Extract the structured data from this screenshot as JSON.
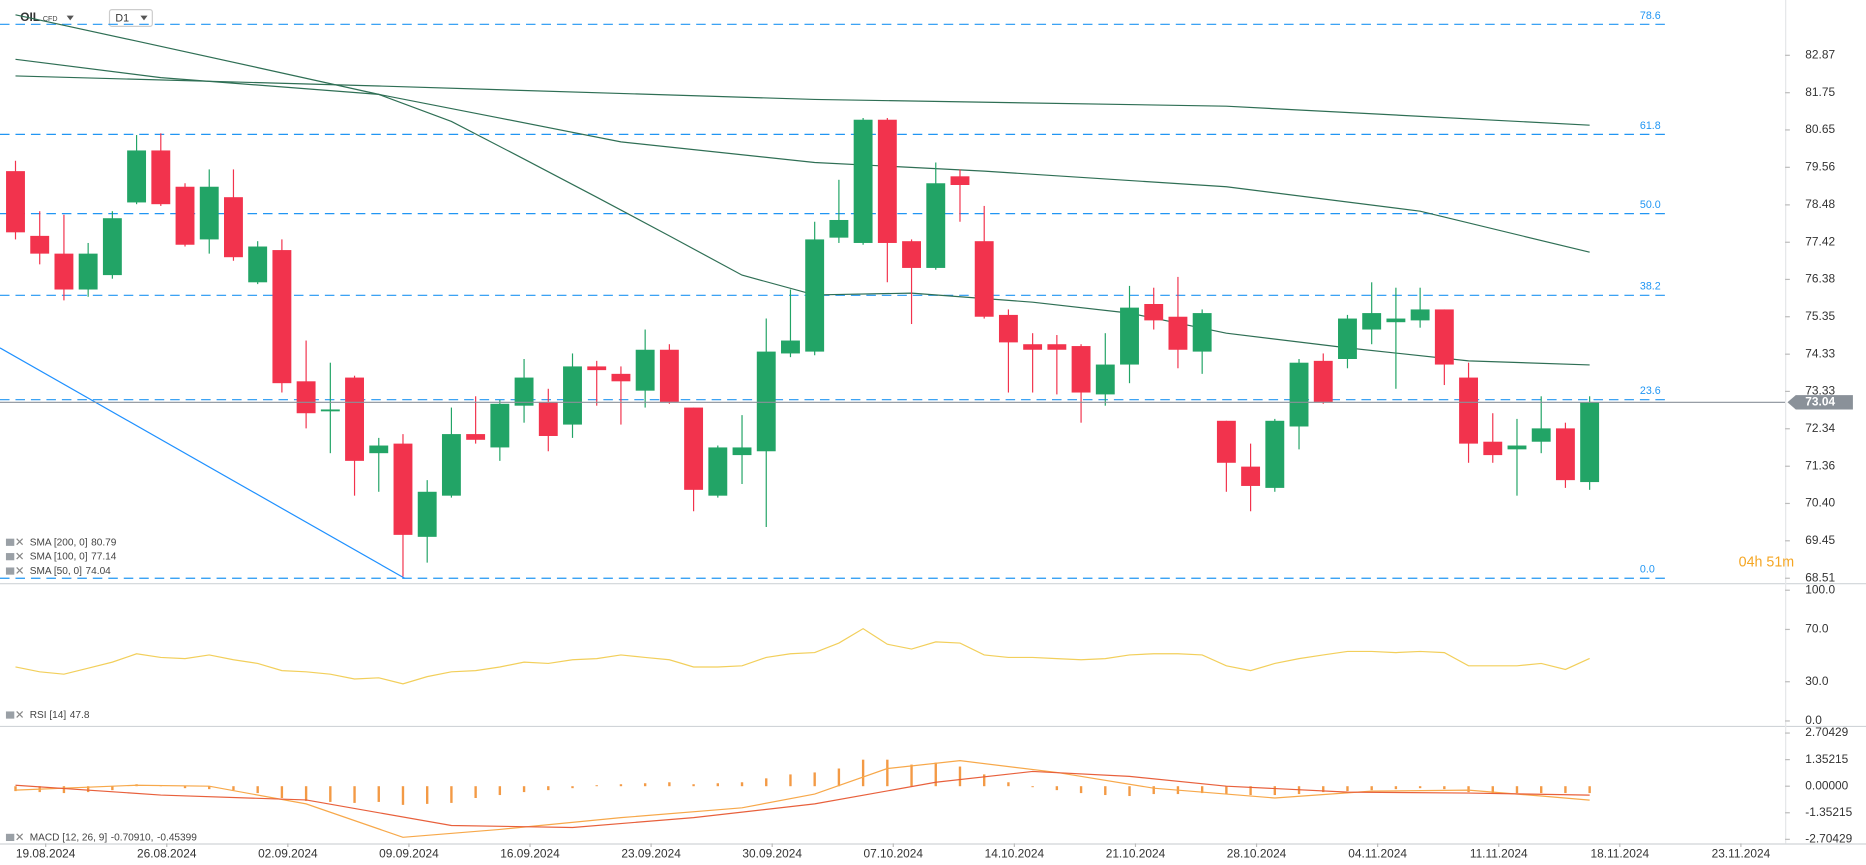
{
  "header": {
    "symbol": "OIL",
    "symbol_type": "CFD",
    "timeframe": "D1"
  },
  "countdown": "04h 51m",
  "chart_data": [
    {
      "type": "candlestick",
      "up_color": "#22a466",
      "down_color": "#f2334d",
      "log_scale": true,
      "xlim": [
        -0.64,
        73.07
      ],
      "ylim": [
        68.39,
        84.26
      ],
      "yticks": [
        82.87,
        81.75,
        80.65,
        79.56,
        78.48,
        77.42,
        76.38,
        75.35,
        74.33,
        73.33,
        72.34,
        71.36,
        {
          "value": 70.4,
          "label": "70.40"
        },
        69.45,
        68.51
      ],
      "xticks": [
        {
          "value": 1,
          "label": "19.08.2024"
        },
        {
          "value": 6,
          "label": "26.08.2024"
        },
        {
          "value": 11,
          "label": "02.09.2024"
        },
        {
          "value": 16,
          "label": "09.09.2024"
        },
        {
          "value": 21,
          "label": "16.09.2024"
        },
        {
          "value": 26,
          "label": "23.09.2024"
        },
        {
          "value": 31,
          "label": "30.09.2024"
        },
        {
          "value": 36,
          "label": "07.10.2024"
        },
        {
          "value": 41,
          "label": "14.10.2024"
        },
        {
          "value": 46,
          "label": "21.10.2024"
        },
        {
          "value": 51,
          "label": "28.10.2024"
        },
        {
          "value": 56,
          "label": "04.11.2024"
        },
        {
          "value": 61,
          "label": "11.11.2024"
        },
        {
          "value": 66,
          "label": "18.11.2024"
        },
        {
          "value": 71,
          "label": "23.11.2024"
        }
      ],
      "open": [
        79.45,
        77.6,
        77.1,
        76.1,
        76.5,
        78.55,
        80.05,
        79.0,
        77.5,
        78.7,
        76.3,
        77.2,
        73.6,
        72.8,
        73.7,
        71.7,
        71.95,
        69.55,
        70.6,
        72.2,
        71.85,
        72.95,
        73.05,
        72.45,
        74.0,
        73.8,
        73.35,
        74.45,
        72.9,
        70.6,
        71.65,
        71.75,
        74.35,
        74.4,
        77.55,
        77.4,
        80.95,
        77.45,
        76.7,
        79.3,
        77.45,
        75.4,
        74.6,
        74.6,
        74.55,
        73.25,
        74.05,
        75.7,
        75.35,
        74.4,
        72.55,
        71.35,
        70.8,
        72.4,
        74.15,
        74.2,
        75.0,
        75.2,
        75.25,
        75.55,
        73.7,
        72.0,
        71.8,
        72.0,
        72.35,
        70.95
      ],
      "high": [
        79.75,
        78.3,
        78.2,
        77.4,
        78.3,
        80.5,
        80.55,
        79.1,
        79.5,
        79.5,
        77.45,
        77.5,
        74.7,
        74.1,
        73.75,
        72.1,
        72.2,
        71.0,
        72.9,
        73.2,
        73.1,
        74.2,
        73.4,
        74.35,
        74.15,
        74.0,
        75.0,
        74.6,
        72.9,
        71.9,
        72.7,
        75.3,
        76.1,
        78.0,
        79.2,
        81.0,
        81.0,
        77.5,
        79.7,
        79.5,
        78.45,
        75.55,
        74.9,
        74.85,
        74.6,
        74.9,
        76.2,
        76.15,
        76.45,
        75.55,
        72.55,
        71.95,
        72.6,
        74.2,
        74.35,
        75.4,
        76.3,
        76.15,
        76.15,
        75.55,
        74.1,
        72.75,
        72.6,
        73.2,
        72.5,
        73.2
      ],
      "low": [
        77.5,
        76.8,
        75.8,
        75.9,
        76.4,
        78.5,
        78.45,
        77.3,
        77.1,
        76.9,
        76.25,
        73.3,
        72.35,
        71.7,
        70.6,
        70.7,
        68.55,
        68.9,
        70.55,
        71.95,
        71.5,
        72.5,
        71.75,
        72.1,
        72.95,
        72.45,
        72.9,
        73.0,
        70.2,
        70.55,
        70.9,
        69.8,
        74.25,
        74.3,
        77.4,
        77.35,
        76.3,
        75.15,
        76.65,
        78.0,
        75.3,
        73.3,
        73.3,
        73.25,
        72.5,
        72.95,
        73.55,
        75.0,
        73.95,
        73.8,
        70.7,
        70.2,
        70.7,
        71.8,
        73.0,
        73.95,
        74.6,
        73.4,
        75.05,
        73.5,
        71.45,
        71.45,
        70.6,
        71.7,
        70.8,
        70.75
      ],
      "close": [
        77.7,
        77.1,
        76.1,
        77.1,
        78.1,
        80.05,
        78.5,
        77.35,
        79.0,
        77.0,
        77.3,
        73.55,
        72.75,
        72.85,
        71.5,
        71.9,
        69.6,
        70.7,
        72.2,
        72.05,
        73.0,
        73.7,
        72.15,
        74.0,
        73.9,
        73.6,
        74.45,
        73.05,
        70.75,
        71.85,
        71.85,
        74.4,
        74.7,
        77.5,
        78.05,
        80.95,
        77.4,
        76.7,
        79.1,
        79.05,
        75.35,
        74.65,
        74.45,
        74.45,
        73.3,
        74.05,
        75.6,
        75.25,
        74.45,
        75.45,
        71.45,
        70.85,
        72.55,
        74.1,
        73.05,
        75.3,
        75.45,
        75.3,
        75.55,
        74.05,
        71.95,
        71.65,
        71.9,
        72.35,
        71.0,
        73.04
      ],
      "last_price": 73.04,
      "overlays": [
        {
          "name": "SMA [200, 0]",
          "last": 80.79,
          "color": "#2f6f55",
          "x": [
            0,
            15,
            33,
            50,
            65
          ],
          "values": [
            82.25,
            81.95,
            81.55,
            81.35,
            80.79
          ]
        },
        {
          "name": "SMA [100, 0]",
          "last": 77.14,
          "color": "#2f6f55",
          "x": [
            0,
            6,
            15,
            20,
            25,
            33,
            40,
            50,
            58,
            65
          ],
          "values": [
            82.75,
            82.2,
            81.7,
            81.0,
            80.3,
            79.7,
            79.45,
            79.0,
            78.3,
            77.14
          ]
        },
        {
          "name": "SMA [50, 0]",
          "last": 74.04,
          "color": "#2f6f55",
          "x": [
            0,
            5,
            10,
            15,
            18,
            21,
            24,
            27,
            30,
            33,
            37,
            42,
            46,
            50,
            55,
            60,
            65
          ],
          "values": [
            84.1,
            83.3,
            82.5,
            81.7,
            80.9,
            79.8,
            78.7,
            77.6,
            76.5,
            75.95,
            76.0,
            75.75,
            75.45,
            74.9,
            74.5,
            74.15,
            74.04
          ]
        }
      ],
      "fibonacci": {
        "color": "#2196f3",
        "levels": [
          {
            "level": {
              "value": 0,
              "label": "0.0"
            },
            "price": 68.51
          },
          {
            "level": 23.6,
            "price": 73.11
          },
          {
            "level": 38.2,
            "price": 75.94
          },
          {
            "level": {
              "value": 50,
              "label": "50.0"
            },
            "price": 78.23
          },
          {
            "level": 61.8,
            "price": 80.52
          },
          {
            "level": 78.6,
            "price": 83.81
          }
        ]
      },
      "trendline": {
        "color": "#1e90ff",
        "x": [
          -0.64,
          16.07
        ],
        "values": [
          74.5,
          68.51
        ]
      }
    },
    {
      "type": "line",
      "xlim": [
        -0.64,
        73.07
      ],
      "ylim": [
        -2.8,
        101.8
      ],
      "yticks": [
        {
          "value": 100,
          "label": "100.0"
        },
        {
          "value": 70,
          "label": "70.0"
        },
        {
          "value": 30,
          "label": "30.0"
        },
        {
          "value": 0,
          "label": "0.0"
        }
      ],
      "series": [
        {
          "name": "RSI [14]",
          "last": 47.8,
          "color": "#f2cf5b",
          "values": [
            41.3,
            37.6,
            35.8,
            40.4,
            45.0,
            51.4,
            48.6,
            47.7,
            50.5,
            46.8,
            44.0,
            38.5,
            37.6,
            35.8,
            32.1,
            33.0,
            28.4,
            33.9,
            37.6,
            38.5,
            41.3,
            45.0,
            44.0,
            46.8,
            47.7,
            50.5,
            48.6,
            46.8,
            41.3,
            41.3,
            42.2,
            48.6,
            51.4,
            52.3,
            59.6,
            70.6,
            58.7,
            55.0,
            60.5,
            59.6,
            50.5,
            48.6,
            48.6,
            47.7,
            46.8,
            47.7,
            50.5,
            51.4,
            51.4,
            50.5,
            42.2,
            38.5,
            44.0,
            47.7,
            50.5,
            53.2,
            53.2,
            52.3,
            53.2,
            52.3,
            42.2,
            42.2,
            42.2,
            44.0,
            39.4,
            47.8
          ]
        }
      ]
    },
    {
      "type": "macd",
      "name": "MACD [12, 26, 9]",
      "xlim": [
        -0.64,
        73.07
      ],
      "ylim": [
        -2.85,
        2.95
      ],
      "yticks": [
        2.70429,
        1.35215,
        {
          "value": 0,
          "label": "0.00000"
        },
        -1.35215,
        -2.70429
      ],
      "histogram": {
        "color": "#f39a45",
        "values": [
          -0.25,
          -0.3,
          -0.35,
          -0.3,
          -0.2,
          0.1,
          0.05,
          -0.1,
          -0.15,
          -0.2,
          -0.35,
          -0.6,
          -0.75,
          -0.8,
          -0.85,
          -0.8,
          -0.95,
          -0.9,
          -0.85,
          -0.6,
          -0.45,
          -0.3,
          -0.2,
          -0.1,
          0.05,
          0.1,
          0.15,
          0.2,
          0.1,
          0.15,
          0.2,
          0.4,
          0.6,
          0.7,
          0.9,
          1.35,
          1.35,
          1.1,
          1.2,
          1.0,
          0.6,
          0.2,
          -0.05,
          -0.2,
          -0.35,
          -0.45,
          -0.5,
          -0.4,
          -0.4,
          -0.35,
          -0.4,
          -0.45,
          -0.45,
          -0.4,
          -0.3,
          -0.25,
          -0.2,
          -0.15,
          -0.1,
          -0.15,
          -0.3,
          -0.35,
          -0.35,
          -0.35,
          -0.35,
          -0.35
        ]
      },
      "series": [
        {
          "color": "#f7a84a",
          "last": -0.7091,
          "last_label": "-0.70910,",
          "x": [
            0,
            5,
            8,
            12,
            16,
            20,
            25,
            30,
            33,
            36,
            39,
            43,
            47,
            52,
            56,
            60,
            63,
            65
          ],
          "values": [
            -0.2,
            0.05,
            0.0,
            -0.9,
            -2.6,
            -2.2,
            -1.6,
            -1.1,
            -0.4,
            0.9,
            1.3,
            0.7,
            -0.1,
            -0.6,
            -0.25,
            -0.2,
            -0.5,
            -0.7091
          ]
        },
        {
          "color": "#e8603c",
          "last": -0.45399,
          "x": [
            0,
            6,
            12,
            18,
            23,
            28,
            33,
            38,
            42,
            46,
            50,
            55,
            60,
            65
          ],
          "values": [
            0.05,
            -0.45,
            -0.7,
            -2.0,
            -2.1,
            -1.6,
            -0.9,
            0.2,
            0.75,
            0.5,
            0.0,
            -0.3,
            -0.35,
            -0.45399
          ]
        }
      ]
    }
  ]
}
